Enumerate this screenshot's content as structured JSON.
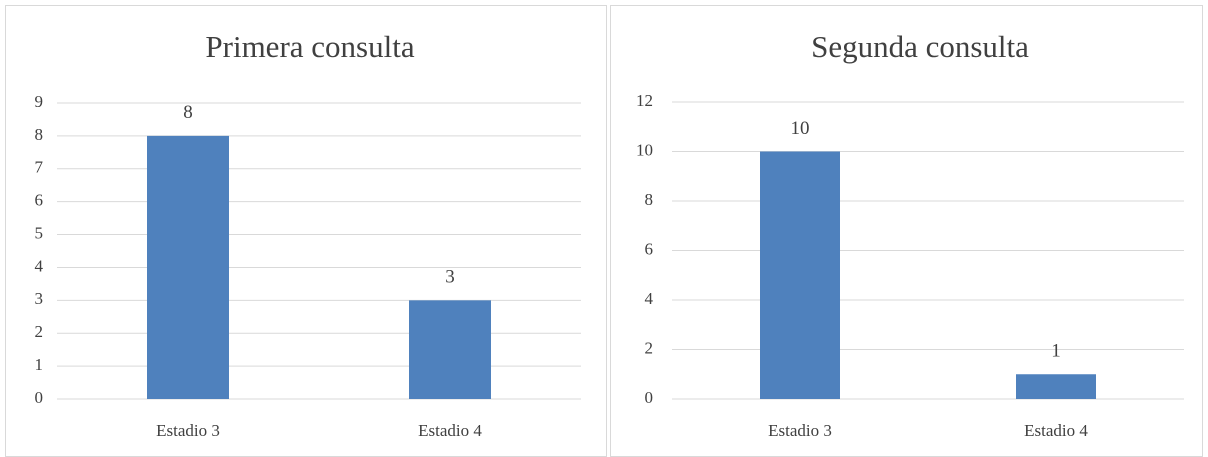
{
  "chart_data": [
    {
      "type": "bar",
      "title": "Primera consulta",
      "categories": [
        "Estadio 3",
        "Estadio 4"
      ],
      "values": [
        8,
        3
      ],
      "color": "#4f81bd",
      "ylim": [
        0,
        9
      ],
      "yticks": [
        0,
        1,
        2,
        3,
        4,
        5,
        6,
        7,
        8,
        9
      ],
      "grid": true,
      "data_labels": true
    },
    {
      "type": "bar",
      "title": "Segunda consulta",
      "categories": [
        "Estadio 3",
        "Estadio 4"
      ],
      "values": [
        10,
        1
      ],
      "color": "#4f81bd",
      "ylim": [
        0,
        12
      ],
      "yticks": [
        0,
        2,
        4,
        6,
        8,
        10,
        12
      ],
      "grid": true,
      "data_labels": true
    }
  ]
}
